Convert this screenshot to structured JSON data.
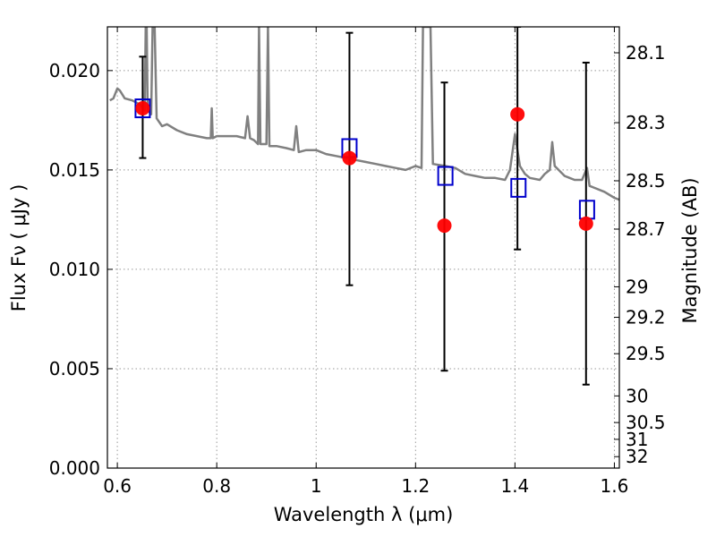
{
  "chart_data": {
    "type": "scatter",
    "xlabel": "Wavelength  λ (μm)",
    "ylabel": "Flux  Fν  ( μJy )",
    "ylabel_right": "Magnitude (AB)",
    "xlim": [
      0.58,
      1.61
    ],
    "ylim": [
      0.0,
      0.0222
    ],
    "grid": true,
    "x_ticks": [
      {
        "value": 0.6,
        "label": "0.6"
      },
      {
        "value": 0.8,
        "label": "0.8"
      },
      {
        "value": 1.0,
        "label": "1"
      },
      {
        "value": 1.2,
        "label": "1.2"
      },
      {
        "value": 1.4,
        "label": "1.4"
      },
      {
        "value": 1.6,
        "label": "1.6"
      }
    ],
    "y_ticks": [
      {
        "value": 0.0,
        "label": "0.000"
      },
      {
        "value": 0.005,
        "label": "0.005"
      },
      {
        "value": 0.01,
        "label": "0.010"
      },
      {
        "value": 0.015,
        "label": "0.015"
      },
      {
        "value": 0.02,
        "label": "0.020"
      }
    ],
    "right_ticks": [
      {
        "mag": 28.1,
        "label": "28.1"
      },
      {
        "mag": 28.3,
        "label": "28.3"
      },
      {
        "mag": 28.5,
        "label": "28.5"
      },
      {
        "mag": 28.7,
        "label": "28.7"
      },
      {
        "mag": 29.0,
        "label": "29"
      },
      {
        "mag": 29.2,
        "label": "29.2"
      },
      {
        "mag": 29.5,
        "label": "29.5"
      },
      {
        "mag": 30.0,
        "label": "30"
      },
      {
        "mag": 30.5,
        "label": "30.5"
      },
      {
        "mag": 31.0,
        "label": "31"
      },
      {
        "mag": 32.0,
        "label": "32"
      }
    ],
    "colors": {
      "spectrum": "#808080",
      "observed": "#ff0000",
      "model": "#0000cc",
      "errorbar": "#000000",
      "grid": "#999999"
    },
    "spectrum": [
      [
        0.585,
        0.0185
      ],
      [
        0.592,
        0.0186
      ],
      [
        0.6,
        0.0191
      ],
      [
        0.605,
        0.019
      ],
      [
        0.615,
        0.0186
      ],
      [
        0.63,
        0.0185
      ],
      [
        0.645,
        0.0183
      ],
      [
        0.655,
        0.018
      ],
      [
        0.657,
        0.0222
      ],
      [
        0.659,
        0.0222
      ],
      [
        0.661,
        0.018
      ],
      [
        0.668,
        0.0178
      ],
      [
        0.671,
        0.0222
      ],
      [
        0.675,
        0.0222
      ],
      [
        0.679,
        0.0176
      ],
      [
        0.69,
        0.0172
      ],
      [
        0.7,
        0.0173
      ],
      [
        0.72,
        0.017
      ],
      [
        0.74,
        0.0168
      ],
      [
        0.76,
        0.0167
      ],
      [
        0.78,
        0.0166
      ],
      [
        0.788,
        0.0166
      ],
      [
        0.79,
        0.0181
      ],
      [
        0.792,
        0.0166
      ],
      [
        0.8,
        0.0167
      ],
      [
        0.82,
        0.0167
      ],
      [
        0.84,
        0.0167
      ],
      [
        0.857,
        0.0166
      ],
      [
        0.862,
        0.0177
      ],
      [
        0.867,
        0.0166
      ],
      [
        0.875,
        0.0165
      ],
      [
        0.883,
        0.0163
      ],
      [
        0.885,
        0.0222
      ],
      [
        0.888,
        0.0163
      ],
      [
        0.9,
        0.0163
      ],
      [
        0.903,
        0.0222
      ],
      [
        0.906,
        0.0162
      ],
      [
        0.92,
        0.0162
      ],
      [
        0.94,
        0.0161
      ],
      [
        0.955,
        0.016
      ],
      [
        0.96,
        0.0172
      ],
      [
        0.965,
        0.0159
      ],
      [
        0.98,
        0.016
      ],
      [
        1.0,
        0.016
      ],
      [
        1.02,
        0.0158
      ],
      [
        1.04,
        0.0157
      ],
      [
        1.06,
        0.0156
      ],
      [
        1.08,
        0.0155
      ],
      [
        1.1,
        0.0154
      ],
      [
        1.12,
        0.0153
      ],
      [
        1.14,
        0.0152
      ],
      [
        1.16,
        0.0151
      ],
      [
        1.18,
        0.015
      ],
      [
        1.2,
        0.0152
      ],
      [
        1.212,
        0.0151
      ],
      [
        1.215,
        0.0222
      ],
      [
        1.23,
        0.0222
      ],
      [
        1.235,
        0.0153
      ],
      [
        1.26,
        0.0152
      ],
      [
        1.28,
        0.0151
      ],
      [
        1.3,
        0.0148
      ],
      [
        1.32,
        0.0147
      ],
      [
        1.34,
        0.0146
      ],
      [
        1.36,
        0.0146
      ],
      [
        1.38,
        0.0145
      ],
      [
        1.39,
        0.015
      ],
      [
        1.4,
        0.0168
      ],
      [
        1.41,
        0.0152
      ],
      [
        1.42,
        0.0148
      ],
      [
        1.43,
        0.0146
      ],
      [
        1.45,
        0.0145
      ],
      [
        1.46,
        0.0148
      ],
      [
        1.47,
        0.015
      ],
      [
        1.475,
        0.0164
      ],
      [
        1.48,
        0.0152
      ],
      [
        1.5,
        0.0147
      ],
      [
        1.52,
        0.0145
      ],
      [
        1.535,
        0.0145
      ],
      [
        1.545,
        0.0151
      ],
      [
        1.55,
        0.0142
      ],
      [
        1.56,
        0.0141
      ],
      [
        1.58,
        0.0139
      ],
      [
        1.6,
        0.0136
      ],
      [
        1.61,
        0.0135
      ]
    ],
    "observed_points": [
      {
        "x": 0.651,
        "y": 0.0181,
        "err_low": 0.0156,
        "err_high": 0.0207
      },
      {
        "x": 1.067,
        "y": 0.0156,
        "err_low": 0.0092,
        "err_high": 0.0219
      },
      {
        "x": 1.258,
        "y": 0.0122,
        "err_low": 0.0049,
        "err_high": 0.0194
      },
      {
        "x": 1.405,
        "y": 0.0178,
        "err_low": 0.011,
        "err_high": 0.0222
      },
      {
        "x": 1.543,
        "y": 0.0123,
        "err_low": 0.0042,
        "err_high": 0.0204
      }
    ],
    "model_points": [
      {
        "x": 0.651,
        "y": 0.0181
      },
      {
        "x": 1.067,
        "y": 0.0161
      },
      {
        "x": 1.26,
        "y": 0.0147
      },
      {
        "x": 1.407,
        "y": 0.0141
      },
      {
        "x": 1.545,
        "y": 0.013
      }
    ]
  }
}
